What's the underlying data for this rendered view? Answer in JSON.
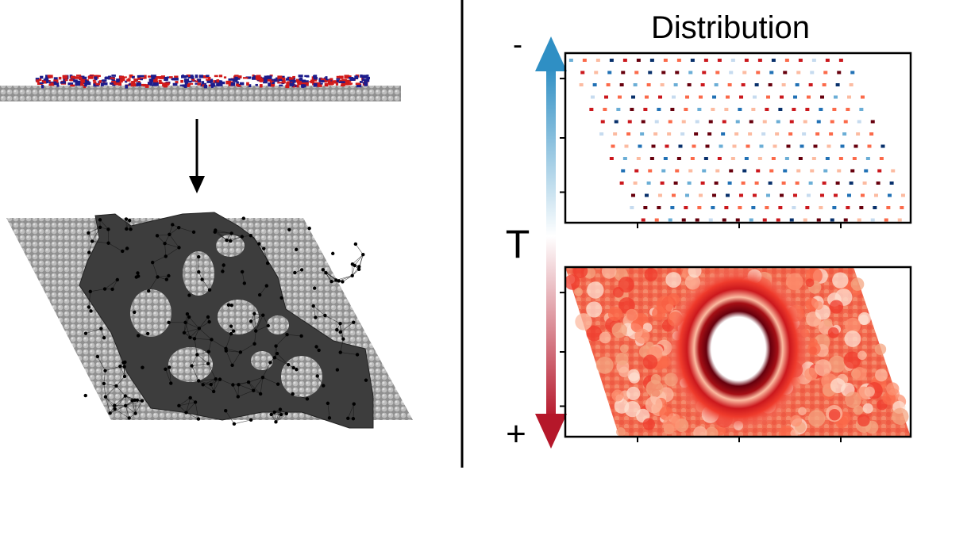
{
  "right_panel": {
    "title": "Distribution",
    "axis_label": "T",
    "top_marker": "-",
    "bottom_marker": "+"
  },
  "colors": {
    "gradient_top": "#2f8fc4",
    "gradient_mid": "#ffffff",
    "gradient_bottom": "#b5172a",
    "polymer_red": "#d11a1a",
    "polymer_blue": "#1c1c8c",
    "substrate_gray": "#a9a9a9",
    "network_dark": "#3d3d3d"
  }
}
